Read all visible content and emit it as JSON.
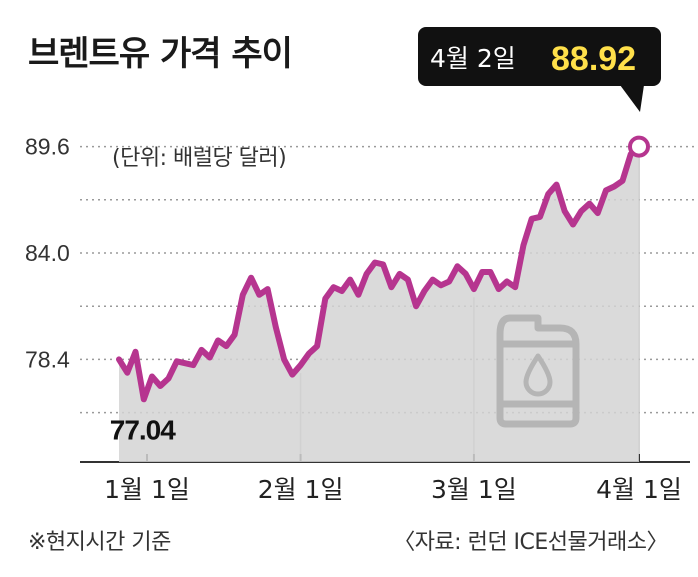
{
  "title": "브렌트유 가격 추이",
  "unit_label": "(단위: 배럴당 달러)",
  "footnote": "※현지시간 기준",
  "source": "〈자료: 런던 ICE선물거래소〉",
  "colors": {
    "line": "#b6358f",
    "area": "#d3d3d3",
    "callout_bg": "#111111",
    "callout_value": "#ffe04a"
  },
  "icon": "oil-canister-icon",
  "chart_data": {
    "type": "area",
    "title": "브렌트유 가격 추이",
    "ylabel": "(단위: 배럴당 달러)",
    "y_ticks": [
      "89.6",
      "84.0",
      "78.4"
    ],
    "x_ticks": [
      "1월 1일",
      "2월 1일",
      "3월 1일",
      "4월 1일"
    ],
    "ylim": [
      73.0,
      91.0
    ],
    "grid": true,
    "annotations": {
      "min_value": "77.04",
      "last_date": "4월 2일",
      "last_value": "88.92"
    },
    "series": [
      {
        "values": [
          78.4,
          77.7,
          78.8,
          76.3,
          77.5,
          77.0,
          77.4,
          78.3,
          78.2,
          78.1,
          78.9,
          78.5,
          79.4,
          79.1,
          79.7,
          81.8,
          82.7,
          81.8,
          82.1,
          80.1,
          78.4,
          77.6,
          78.1,
          78.7,
          79.1,
          81.6,
          82.2,
          82.0,
          82.6,
          81.8,
          82.9,
          83.5,
          83.4,
          82.2,
          82.9,
          82.6,
          81.2,
          82.0,
          82.6,
          82.3,
          82.5,
          83.3,
          82.9,
          82.1,
          83.0,
          83.0,
          82.1,
          82.5,
          82.2,
          84.4,
          85.8,
          85.9,
          87.1,
          87.6,
          86.2,
          85.5,
          86.2,
          86.6,
          86.1,
          87.3,
          87.5,
          87.8,
          89.2,
          89.6
        ],
        "dates": [
          "1월 2일",
          "1월 3일",
          "1월 4일",
          "1월 5일",
          "1월 8일",
          "1월 9일",
          "1월 10일",
          "1월 11일",
          "1월 12일",
          "1월 15일",
          "1월 16일",
          "1월 17일",
          "1월 18일",
          "1월 19일",
          "1월 22일",
          "1월 23일",
          "1월 24일",
          "1월 25일",
          "1월 26일",
          "1월 29일",
          "1월 30일",
          "1월 31일",
          "2월 1일",
          "2월 2일",
          "2월 5일",
          "2월 6일",
          "2월 7일",
          "2월 8일",
          "2월 9일",
          "2월 12일",
          "2월 13일",
          "2월 14일",
          "2월 15일",
          "2월 16일",
          "2월 19일",
          "2월 20일",
          "2월 21일",
          "2월 22일",
          "2월 23일",
          "2월 26일",
          "2월 27일",
          "2월 28일",
          "2월 29일",
          "3월 1일",
          "3월 4일",
          "3월 5일",
          "3월 6일",
          "3월 7일",
          "3월 8일",
          "3월 11일",
          "3월 12일",
          "3월 13일",
          "3월 14일",
          "3월 15일",
          "3월 18일",
          "3월 19일",
          "3월 20일",
          "3월 21일",
          "3월 22일",
          "3월 25일",
          "3월 26일",
          "3월 27일",
          "3월 28일",
          "4월 1일"
        ]
      }
    ]
  }
}
